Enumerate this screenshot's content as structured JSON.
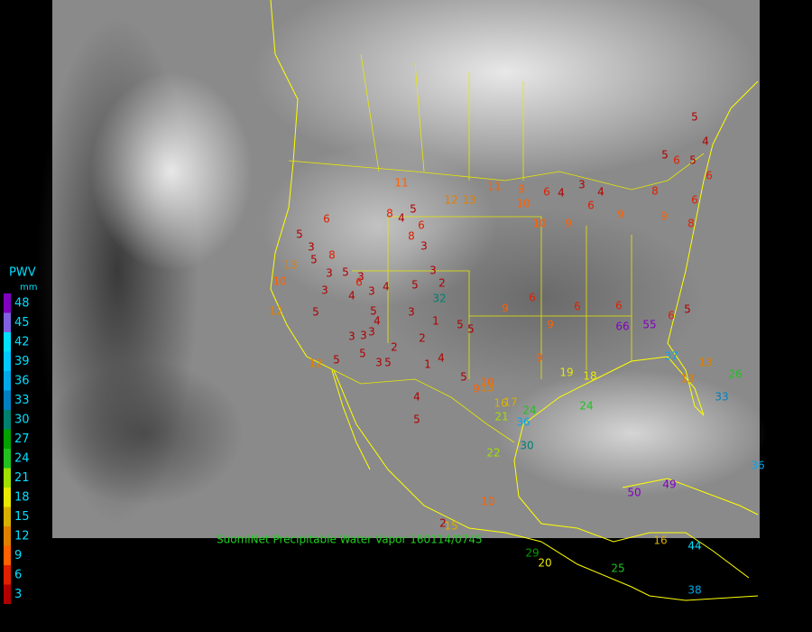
{
  "legend": {
    "title": "PWV",
    "unit": "mm",
    "levels": [
      48,
      45,
      42,
      39,
      36,
      33,
      30,
      27,
      24,
      21,
      18,
      15,
      12,
      9,
      6,
      3
    ],
    "colors": [
      "#8000c0",
      "#8060e0",
      "#00e0ff",
      "#00c8ff",
      "#00a8e8",
      "#0080c0",
      "#008070",
      "#00a000",
      "#20c020",
      "#a0e000",
      "#e8e800",
      "#d8b000",
      "#e08000",
      "#ff6000",
      "#e02000",
      "#b00000"
    ]
  },
  "caption": "SuomiNet Precipitable Water Vapor 160114/0745",
  "stations": [
    5,
    4,
    5,
    6,
    5,
    6,
    8,
    6,
    6,
    4,
    3,
    4,
    6,
    9,
    9,
    8,
    9,
    10,
    11,
    9,
    12,
    13,
    11,
    10,
    8,
    4,
    5,
    6,
    6,
    5,
    8,
    3,
    3,
    8,
    5,
    3,
    5,
    3,
    6,
    3,
    4,
    3,
    4,
    5,
    3,
    2,
    32,
    5,
    3,
    1,
    5,
    5,
    3,
    4,
    3,
    3,
    2,
    2,
    5,
    5,
    3,
    5,
    1,
    4,
    4,
    5,
    5,
    13,
    10,
    12,
    12,
    5,
    9,
    10,
    13,
    9,
    6,
    6,
    6,
    66,
    55,
    6,
    5,
    37,
    13,
    13,
    26,
    33,
    24,
    22,
    21,
    16,
    10,
    2,
    15,
    50,
    49,
    29,
    20,
    25,
    16,
    44,
    38,
    36,
    9,
    9,
    19,
    18,
    17,
    24,
    36,
    30
  ]
}
